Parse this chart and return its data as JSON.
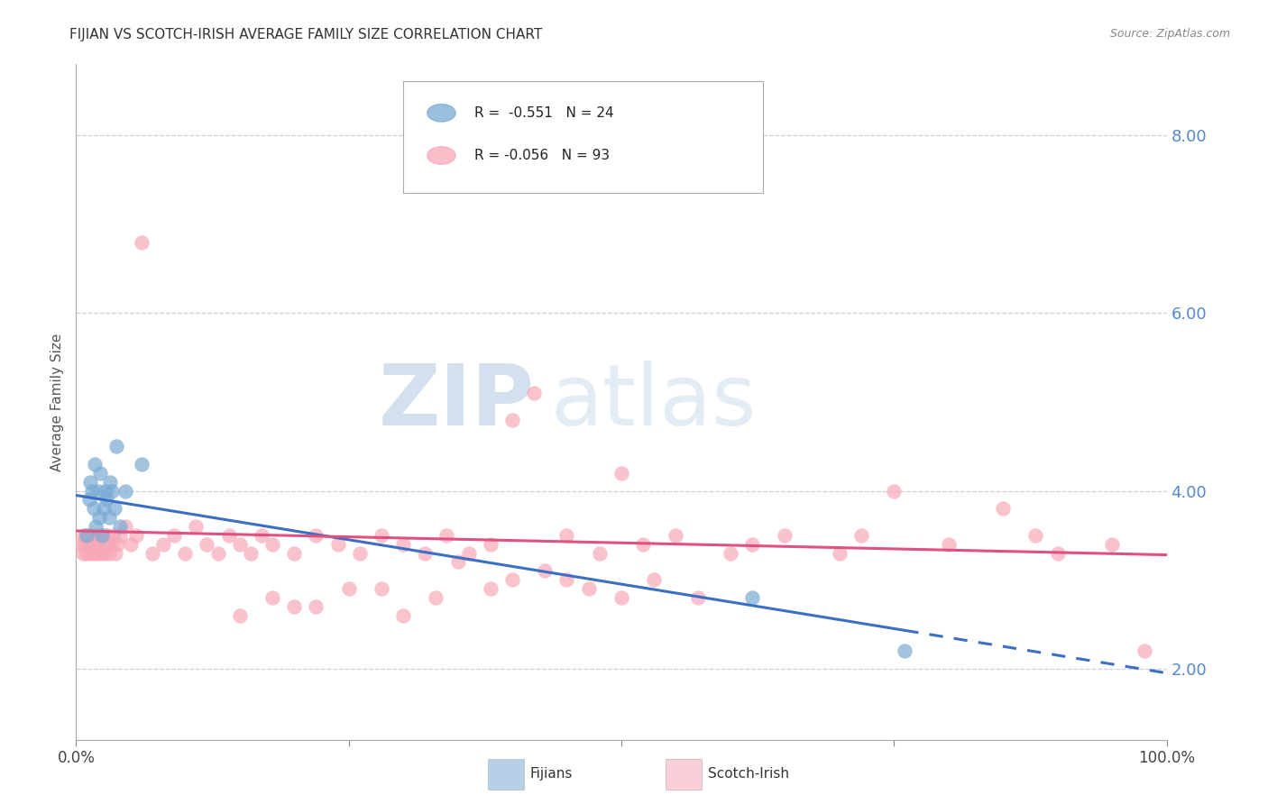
{
  "title": "FIJIAN VS SCOTCH-IRISH AVERAGE FAMILY SIZE CORRELATION CHART",
  "source": "Source: ZipAtlas.com",
  "ylabel": "Average Family Size",
  "yticks": [
    2.0,
    4.0,
    6.0,
    8.0
  ],
  "xlim": [
    0.0,
    100.0
  ],
  "ylim": [
    1.2,
    8.8
  ],
  "fijian_color": "#7aaad4",
  "scotch_irish_color": "#f7a8b8",
  "fijian_line_color": "#3a6fc4",
  "scotch_irish_line_color": "#e05080",
  "legend_fijian_r": "R =  -0.551",
  "legend_fijian_n": "N = 24",
  "legend_scotch_r": "R = -0.056",
  "legend_scotch_n": "N = 93",
  "fijian_label": "Fijians",
  "scotch_label": "Scotch-Irish",
  "watermark_zip": "ZIP",
  "watermark_atlas": "atlas",
  "background_color": "#ffffff",
  "grid_color": "#c8c8d8",
  "ytick_color": "#5588cc",
  "title_color": "#333333",
  "source_color": "#888888",
  "fijian_x": [
    1.0,
    1.2,
    1.3,
    1.5,
    1.6,
    1.7,
    1.8,
    2.0,
    2.1,
    2.2,
    2.4,
    2.5,
    2.7,
    2.8,
    3.0,
    3.1,
    3.3,
    3.5,
    3.7,
    4.0,
    4.5,
    6.0,
    62.0,
    76.0
  ],
  "fijian_y": [
    3.5,
    3.9,
    4.1,
    4.0,
    3.8,
    4.3,
    3.6,
    4.0,
    3.7,
    4.2,
    3.5,
    3.8,
    4.0,
    3.9,
    3.7,
    4.1,
    4.0,
    3.8,
    4.5,
    3.6,
    4.0,
    4.3,
    2.8,
    2.2
  ],
  "scotch_x": [
    0.4,
    0.6,
    0.7,
    0.8,
    0.9,
    1.0,
    1.1,
    1.2,
    1.3,
    1.4,
    1.5,
    1.6,
    1.7,
    1.8,
    1.9,
    2.0,
    2.1,
    2.2,
    2.3,
    2.4,
    2.5,
    2.6,
    2.7,
    2.8,
    2.9,
    3.0,
    3.2,
    3.4,
    3.6,
    3.8,
    4.0,
    4.5,
    5.0,
    5.5,
    6.0,
    7.0,
    8.0,
    9.0,
    10.0,
    11.0,
    12.0,
    13.0,
    14.0,
    15.0,
    16.0,
    17.0,
    18.0,
    20.0,
    22.0,
    24.0,
    26.0,
    28.0,
    30.0,
    32.0,
    34.0,
    36.0,
    38.0,
    40.0,
    42.0,
    45.0,
    48.0,
    50.0,
    52.0,
    55.0,
    60.0,
    62.0,
    65.0,
    70.0,
    72.0,
    75.0,
    80.0,
    85.0,
    88.0,
    90.0,
    95.0,
    98.0,
    35.0,
    45.0,
    50.0,
    30.0,
    25.0,
    20.0,
    40.0,
    18.0,
    15.0,
    22.0,
    28.0,
    33.0,
    38.0,
    43.0,
    47.0,
    53.0,
    57.0
  ],
  "scotch_y": [
    3.4,
    3.3,
    3.5,
    3.4,
    3.5,
    3.3,
    3.4,
    3.5,
    3.3,
    3.4,
    3.5,
    3.3,
    3.5,
    3.4,
    3.3,
    3.5,
    3.4,
    3.5,
    3.3,
    3.5,
    3.4,
    3.3,
    3.5,
    3.4,
    3.5,
    3.3,
    3.4,
    3.5,
    3.3,
    3.4,
    3.5,
    3.6,
    3.4,
    3.5,
    6.8,
    3.3,
    3.4,
    3.5,
    3.3,
    3.6,
    3.4,
    3.3,
    3.5,
    3.4,
    3.3,
    3.5,
    3.4,
    3.3,
    3.5,
    3.4,
    3.3,
    3.5,
    3.4,
    3.3,
    3.5,
    3.3,
    3.4,
    4.8,
    5.1,
    3.5,
    3.3,
    4.2,
    3.4,
    3.5,
    3.3,
    3.4,
    3.5,
    3.3,
    3.5,
    4.0,
    3.4,
    3.8,
    3.5,
    3.3,
    3.4,
    2.2,
    3.2,
    3.0,
    2.8,
    2.6,
    2.9,
    2.7,
    3.0,
    2.8,
    2.6,
    2.7,
    2.9,
    2.8,
    2.9,
    3.1,
    2.9,
    3.0,
    2.8
  ],
  "fijian_line_x0": 0.0,
  "fijian_line_y0": 3.95,
  "fijian_line_x1": 100.0,
  "fijian_line_y1": 1.95,
  "fijian_solid_end_x": 76.0,
  "scotch_line_x0": 0.0,
  "scotch_line_y0": 3.55,
  "scotch_line_x1": 100.0,
  "scotch_line_y1": 3.28
}
